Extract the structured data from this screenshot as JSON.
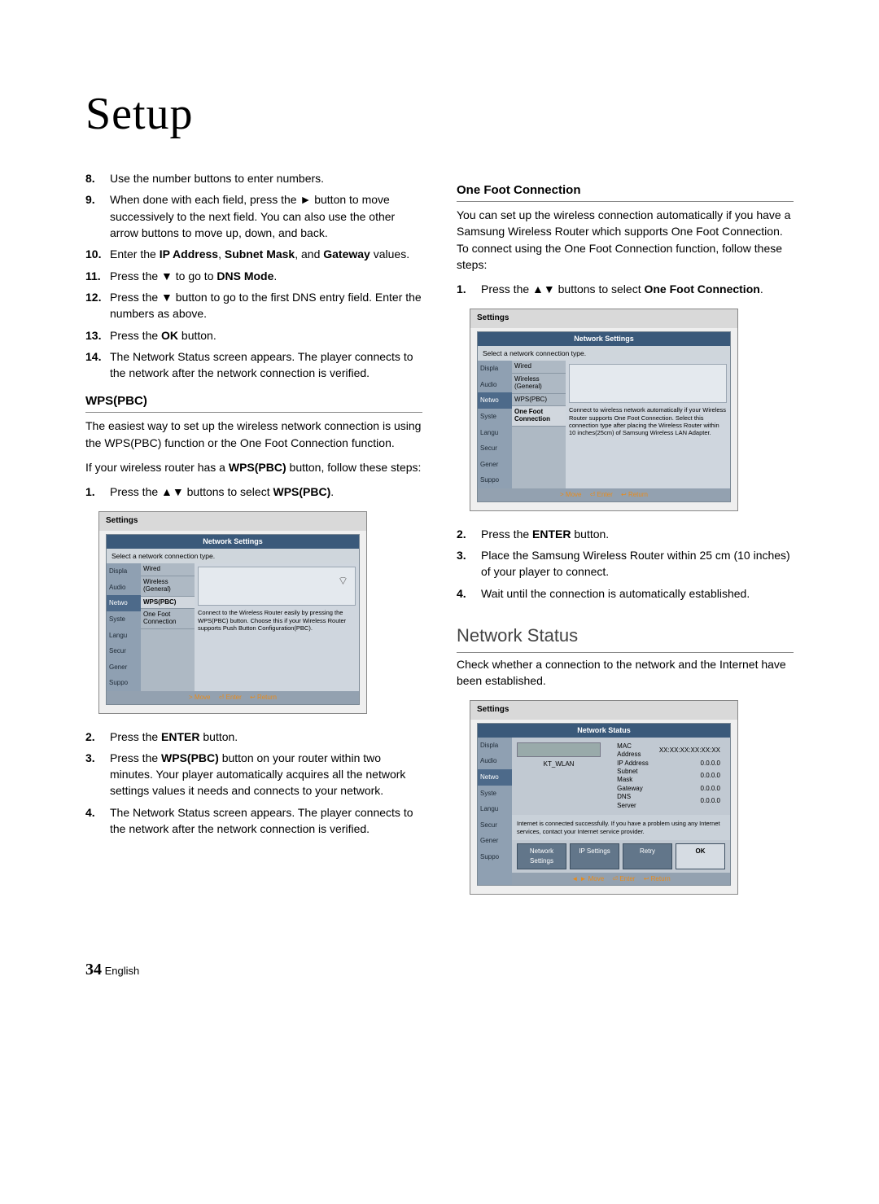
{
  "page": {
    "title": "Setup",
    "number": "34",
    "lang": "English"
  },
  "left": {
    "steps_a": [
      {
        "n": "8.",
        "html": "Use the number buttons to enter numbers."
      },
      {
        "n": "9.",
        "html": "When done with each field, press the ► button to move successively to the next field. You can also use the other arrow buttons to move up, down, and back."
      },
      {
        "n": "10.",
        "html": "Enter the <strong>IP Address</strong>, <strong>Subnet Mask</strong>, and <strong>Gateway</strong> values."
      },
      {
        "n": "11.",
        "html": "Press the ▼ to go to <strong>DNS Mode</strong>."
      },
      {
        "n": "12.",
        "html": "Press the ▼ button to go to the first DNS entry field. Enter the numbers as above."
      },
      {
        "n": "13.",
        "html": "Press the <strong>OK</strong> button."
      },
      {
        "n": "14.",
        "html": "The Network Status screen appears. The player connects to the network after the network connection is verified."
      }
    ],
    "wps_heading": "WPS(PBC)",
    "wps_intro1": "The easiest way to set up the wireless network connection is using the WPS(PBC) function or the One Foot Connection function.",
    "wps_intro2_html": "If your wireless router has a <strong>WPS(PBC)</strong> button, follow these steps:",
    "wps_steps_top": [
      {
        "n": "1.",
        "html": "Press the ▲▼ buttons to select <strong>WPS(PBC)</strong>."
      }
    ],
    "wps_steps_bottom": [
      {
        "n": "2.",
        "html": "Press the <strong>ENTER</strong> button."
      },
      {
        "n": "3.",
        "html": "Press the <strong>WPS(PBC)</strong> button on your router within two minutes. Your player automatically acquires all the network settings values it needs and connects to your network."
      },
      {
        "n": "4.",
        "html": "The Network Status screen appears. The player connects to the network after the network connection is verified."
      }
    ]
  },
  "right": {
    "ofc_heading": "One Foot Connection",
    "ofc_intro": "You can set up the wireless connection automatically if you have a Samsung Wireless Router which supports One Foot Connection. To connect using the One Foot Connection function, follow these steps:",
    "ofc_steps_top": [
      {
        "n": "1.",
        "html": "Press the ▲▼ buttons to select <strong>One Foot Connection</strong>."
      }
    ],
    "ofc_steps_bottom": [
      {
        "n": "2.",
        "html": "Press the <strong>ENTER</strong> button."
      },
      {
        "n": "3.",
        "html": "Place the Samsung Wireless Router within 25 cm (10 inches) of your player to connect."
      },
      {
        "n": "4.",
        "html": "Wait until the connection is automatically established."
      }
    ],
    "ns_heading": "Network Status",
    "ns_intro": "Check whether a connection to the network and the Internet have been established."
  },
  "fig_shared": {
    "settings": "Settings",
    "panel_title": "Network Settings",
    "panel_sub": "Select a network connection type.",
    "side": [
      "Displa",
      "Audio",
      "Netwo",
      "Syste",
      "Langu",
      "Secur",
      "Gener",
      "Suppo"
    ],
    "side_hl_index": 2,
    "opts": [
      "Wired",
      "Wireless (General)",
      "WPS(PBC)",
      "One Foot Connection"
    ],
    "bot": {
      "move": "> Move",
      "enter": "⏎ Enter",
      "return": "↩ Return"
    }
  },
  "fig_wps": {
    "sel_index": 2,
    "desc": "Connect to the Wireless Router easily by pressing the WPS(PBC) button. Choose this if your Wireless Router supports Push Button Configuration(PBC).",
    "wifi_glyph": "⌔"
  },
  "fig_ofc": {
    "sel_index": 3,
    "desc": "Connect to wireless network automatically if your Wireless Router supports One Foot Connection. Select this connection type after placing the Wireless Router within 10 inches(25cm) of Samsung Wireless LAN Adapter."
  },
  "fig_ns": {
    "panel_title": "Network Status",
    "wlan": "KT_WLAN",
    "fields": [
      {
        "k": "MAC Address",
        "v": "XX:XX:XX:XX:XX:XX"
      },
      {
        "k": "IP Address",
        "v": "0.0.0.0"
      },
      {
        "k": "Subnet Mask",
        "v": "0.0.0.0"
      },
      {
        "k": "Gateway",
        "v": "0.0.0.0"
      },
      {
        "k": "DNS Server",
        "v": "0.0.0.0"
      }
    ],
    "msg": "Internet is connected successfully.\nIf you have a problem using any Internet services, contact your Internet service provider.",
    "buttons": [
      "Network Settings",
      "IP Settings",
      "Retry",
      "OK"
    ],
    "bot": {
      "move": "◄ ► Move",
      "enter": "⏎ Enter",
      "return": "↩ Return"
    }
  }
}
